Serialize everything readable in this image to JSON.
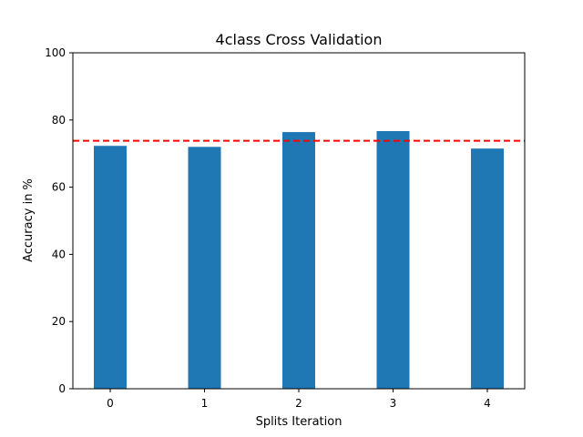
{
  "chart_data": {
    "type": "bar",
    "title": "4class Cross Validation",
    "xlabel": "Splits Iteration",
    "ylabel": "Accuracy in %",
    "categories": [
      "0",
      "1",
      "2",
      "3",
      "4"
    ],
    "values": [
      72.3,
      72.0,
      76.4,
      76.7,
      71.5
    ],
    "ylim": [
      0,
      100
    ],
    "yticks": [
      "0",
      "20",
      "40",
      "60",
      "80",
      "100"
    ],
    "reference_line": {
      "value": 73.8,
      "color": "#ff0000",
      "style": "dashed"
    },
    "bar_color": "#1f77b4",
    "grid": false,
    "legend": "none"
  }
}
